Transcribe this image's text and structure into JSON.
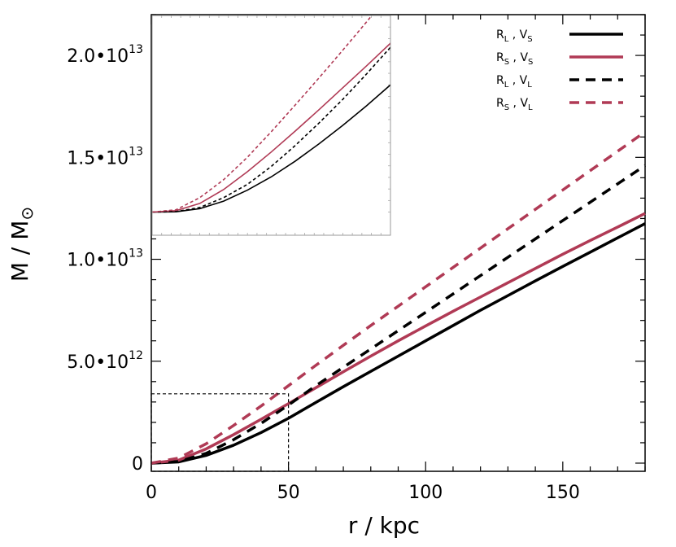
{
  "chart_data": {
    "type": "line",
    "xlabel": "r / kpc",
    "ylabel_main": "M / M",
    "ylabel_sub": "⊙",
    "xlim": [
      0,
      180
    ],
    "ylim": [
      -400000000000,
      22000000000000
    ],
    "x_ticks": [
      {
        "value": 0,
        "label": "0"
      },
      {
        "value": 50,
        "label": "50"
      },
      {
        "value": 100,
        "label": "100"
      },
      {
        "value": 150,
        "label": "150"
      }
    ],
    "y_ticks": [
      {
        "value": 0,
        "mant": "0",
        "exp": ""
      },
      {
        "value": 5000000000000,
        "mant": "5.0•10",
        "exp": "12"
      },
      {
        "value": 10000000000000,
        "mant": "1.0•10",
        "exp": "13"
      },
      {
        "value": 15000000000000,
        "mant": "1.5•10",
        "exp": "13"
      },
      {
        "value": 20000000000000,
        "mant": "2.0•10",
        "exp": "13"
      }
    ],
    "legend": [
      {
        "name_main": "R",
        "name_sub": "L",
        "name_mid": " , V",
        "name_sub2": "S"
      },
      {
        "name_main": "R",
        "name_sub": "S",
        "name_mid": " , V",
        "name_sub2": "S"
      },
      {
        "name_main": "R",
        "name_sub": "L",
        "name_mid": " , V",
        "name_sub2": "L"
      },
      {
        "name_main": "R",
        "name_sub": "S",
        "name_mid": " , V",
        "name_sub2": "L"
      }
    ],
    "series": [
      {
        "key": "RL_VS",
        "color": "#000000",
        "dashed": false,
        "x": [
          0,
          10,
          20,
          30,
          40,
          50,
          60,
          70,
          80,
          90,
          100,
          110,
          120,
          130,
          140,
          150,
          160,
          170,
          180
        ],
        "y": [
          0,
          60000000000,
          380000000000,
          880000000000,
          1500000000000,
          2200000000000,
          2980000000000,
          3750000000000,
          4500000000000,
          5250000000000,
          6000000000000,
          6750000000000,
          7500000000000,
          8220000000000,
          8940000000000,
          9650000000000,
          10350000000000,
          11050000000000,
          11750000000000
        ]
      },
      {
        "key": "RS_VS",
        "color": "#b03a55",
        "dashed": false,
        "x": [
          0,
          10,
          20,
          30,
          40,
          50,
          60,
          70,
          80,
          90,
          100,
          110,
          120,
          130,
          140,
          150,
          160,
          170,
          180
        ],
        "y": [
          0,
          150000000000,
          700000000000,
          1400000000000,
          2150000000000,
          2920000000000,
          3700000000000,
          4480000000000,
          5250000000000,
          6000000000000,
          6730000000000,
          7450000000000,
          8150000000000,
          8850000000000,
          9550000000000,
          10250000000000,
          10920000000000,
          11580000000000,
          12250000000000
        ]
      },
      {
        "key": "RL_VL",
        "color": "#000000",
        "dashed": true,
        "x": [
          0,
          10,
          20,
          30,
          40,
          50,
          60,
          70,
          80,
          90,
          100,
          110,
          120,
          130,
          140,
          150,
          160,
          170,
          180
        ],
        "y": [
          0,
          80000000000,
          480000000000,
          1150000000000,
          1950000000000,
          2850000000000,
          3800000000000,
          4700000000000,
          5600000000000,
          6500000000000,
          7400000000000,
          8300000000000,
          9200000000000,
          10100000000000,
          11000000000000,
          11900000000000,
          12800000000000,
          13700000000000,
          14600000000000
        ]
      },
      {
        "key": "RS_VL",
        "color": "#b03a55",
        "dashed": true,
        "x": [
          0,
          10,
          20,
          30,
          40,
          50,
          60,
          70,
          80,
          90,
          100,
          110,
          120,
          130,
          140,
          150,
          160,
          170,
          180
        ],
        "y": [
          0,
          250000000000,
          950000000000,
          1850000000000,
          2800000000000,
          3800000000000,
          4800000000000,
          5780000000000,
          6750000000000,
          7700000000000,
          8650000000000,
          9600000000000,
          10550000000000,
          11500000000000,
          12450000000000,
          13400000000000,
          14350000000000,
          15300000000000,
          16250000000000
        ]
      }
    ],
    "zoom_box": {
      "x": [
        0,
        50
      ],
      "y": [
        -400000000000,
        3400000000000
      ]
    },
    "inset": {
      "xlim": [
        0,
        50
      ],
      "ylim": [
        -400000000000,
        3400000000000
      ]
    }
  }
}
